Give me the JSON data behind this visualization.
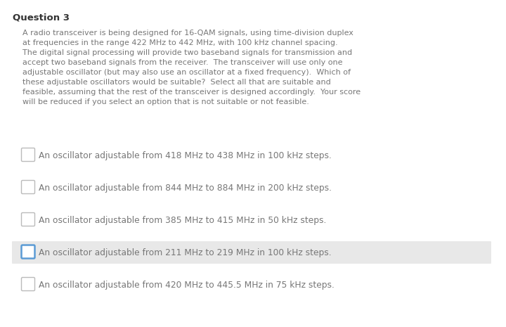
{
  "title": "Question 3",
  "body_text": "A radio transceiver is being designed for 16-QAM signals, using time-division duplex\nat frequencies in the range 422 MHz to 442 MHz, with 100 kHz channel spacing.\nThe digital signal processing will provide two baseband signals for transmission and\naccept two baseband signals from the receiver.  The transceiver will use only one\nadjustable oscillator (but may also use an oscillator at a fixed frequency).  Which of\nthese adjustable oscillators would be suitable?  Select all that are suitable and\nfeasible, assuming that the rest of the transceiver is designed accordingly.  Your score\nwill be reduced if you select an option that is not suitable or not feasible.",
  "options": [
    "An oscillator adjustable from 418 MHz to 438 MHz in 100 kHz steps.",
    "An oscillator adjustable from 844 MHz to 884 MHz in 200 kHz steps.",
    "An oscillator adjustable from 385 MHz to 415 MHz in 50 kHz steps.",
    "An oscillator adjustable from 211 MHz to 219 MHz in 100 kHz steps.",
    "An oscillator adjustable from 420 MHz to 445.5 MHz in 75 kHz steps."
  ],
  "highlighted_option_index": 3,
  "background_color": "#ffffff",
  "highlight_color": "#e8e8e8",
  "text_color": "#777777",
  "title_color": "#333333",
  "checkbox_border_color": "#bbbbbb",
  "highlighted_checkbox_border_color": "#5b9bd5",
  "body_fontsize": 8.0,
  "title_fontsize": 9.5,
  "option_fontsize": 8.8
}
